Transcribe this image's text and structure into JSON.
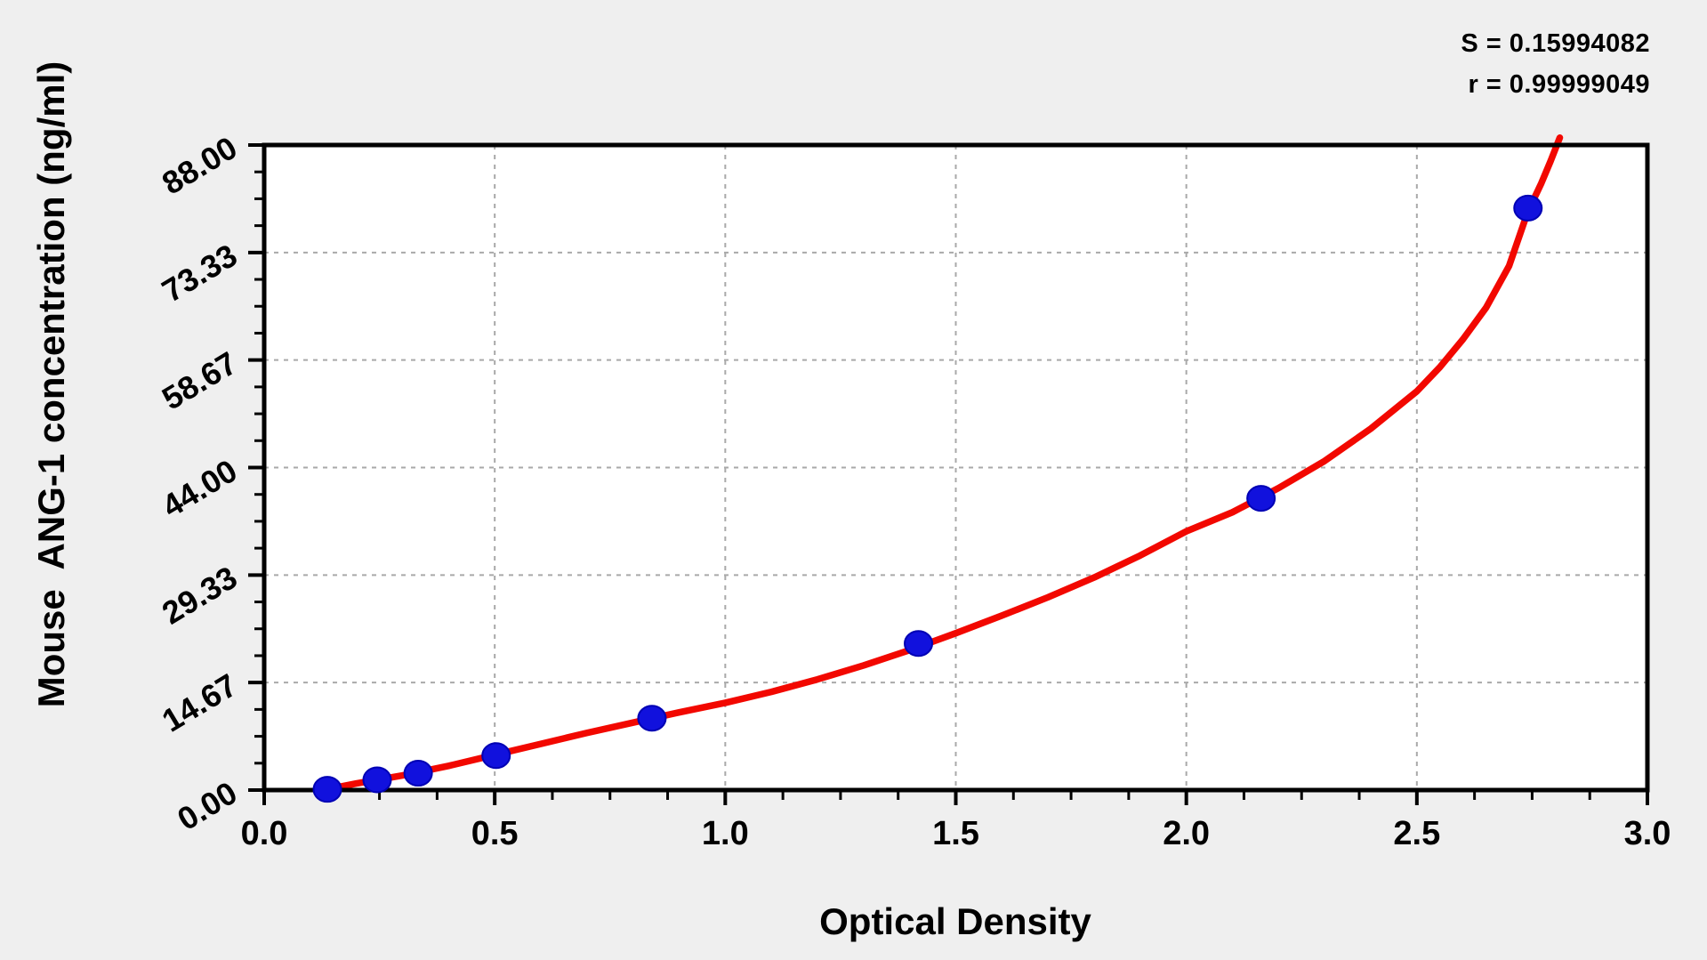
{
  "stats": {
    "s_line": "S = 0.15994082",
    "r_line": "r = 0.99999049"
  },
  "axes": {
    "x": {
      "title": "Optical Density",
      "min": 0.0,
      "max": 3.0,
      "minor_step": 0.125,
      "ticks": [
        {
          "label": "0.0",
          "value": 0.0
        },
        {
          "label": "0.5",
          "value": 0.5
        },
        {
          "label": "1.0",
          "value": 1.0
        },
        {
          "label": "1.5",
          "value": 1.5
        },
        {
          "label": "2.0",
          "value": 2.0
        },
        {
          "label": "2.5",
          "value": 2.5
        },
        {
          "label": "3.0",
          "value": 3.0
        }
      ]
    },
    "y": {
      "title": "Mouse  ANG-1 concentration (ng/ml)",
      "min": 0.0,
      "max": 88.0,
      "minor_step": 3.6667,
      "ticks": [
        {
          "label": "0.00",
          "value": 0.0
        },
        {
          "label": "14.67",
          "value": 14.6667
        },
        {
          "label": "29.33",
          "value": 29.3333
        },
        {
          "label": "44.00",
          "value": 44.0
        },
        {
          "label": "58.67",
          "value": 58.6667
        },
        {
          "label": "73.33",
          "value": 73.3333
        },
        {
          "label": "88.00",
          "value": 88.0
        }
      ]
    }
  },
  "chart_data": {
    "type": "scatter",
    "title": "",
    "xlabel": "Optical Density",
    "ylabel": "Mouse  ANG-1 concentration (ng/ml)",
    "xlim": [
      0.0,
      3.0
    ],
    "ylim": [
      0.0,
      88.0
    ],
    "grid": "dashed gray lines at major ticks",
    "legend_position": "none",
    "annotations": [
      "S = 0.15994082",
      "r = 0.99999049"
    ],
    "series": [
      {
        "name": "standard-points",
        "type": "scatter",
        "marker": "filled-circle",
        "points": [
          [
            0.137,
            0.1
          ],
          [
            0.245,
            1.4
          ],
          [
            0.334,
            2.3
          ],
          [
            0.503,
            4.7
          ],
          [
            0.841,
            9.8
          ],
          [
            1.419,
            20.0
          ],
          [
            2.162,
            39.8
          ],
          [
            2.741,
            79.4
          ]
        ]
      },
      {
        "name": "fitted-curve",
        "type": "line",
        "points": [
          [
            0.128,
            0.0
          ],
          [
            0.2,
            0.9
          ],
          [
            0.3,
            2.0
          ],
          [
            0.4,
            3.3
          ],
          [
            0.5,
            4.8
          ],
          [
            0.6,
            6.3
          ],
          [
            0.7,
            7.8
          ],
          [
            0.8,
            9.2
          ],
          [
            0.9,
            10.6
          ],
          [
            1.0,
            11.9
          ],
          [
            1.1,
            13.4
          ],
          [
            1.2,
            15.1
          ],
          [
            1.3,
            17.0
          ],
          [
            1.4,
            19.1
          ],
          [
            1.5,
            21.4
          ],
          [
            1.6,
            23.8
          ],
          [
            1.7,
            26.3
          ],
          [
            1.8,
            29.0
          ],
          [
            1.9,
            32.0
          ],
          [
            2.0,
            35.3
          ],
          [
            2.1,
            37.9
          ],
          [
            2.2,
            41.2
          ],
          [
            2.3,
            44.9
          ],
          [
            2.4,
            49.3
          ],
          [
            2.5,
            54.4
          ],
          [
            2.55,
            57.7
          ],
          [
            2.6,
            61.5
          ],
          [
            2.65,
            65.8
          ],
          [
            2.7,
            71.5
          ],
          [
            2.74,
            78.8
          ],
          [
            2.77,
            82.8
          ],
          [
            2.79,
            85.8
          ],
          [
            2.81,
            89.0
          ]
        ]
      }
    ]
  },
  "colors": {
    "background": "#efefef",
    "plot_background": "#ffffff",
    "axis": "#000000",
    "grid": "#a9a9a9",
    "curve": "#f20800",
    "point_fill": "#1111dd",
    "point_edge": "#0000b4",
    "text": "#000000"
  }
}
